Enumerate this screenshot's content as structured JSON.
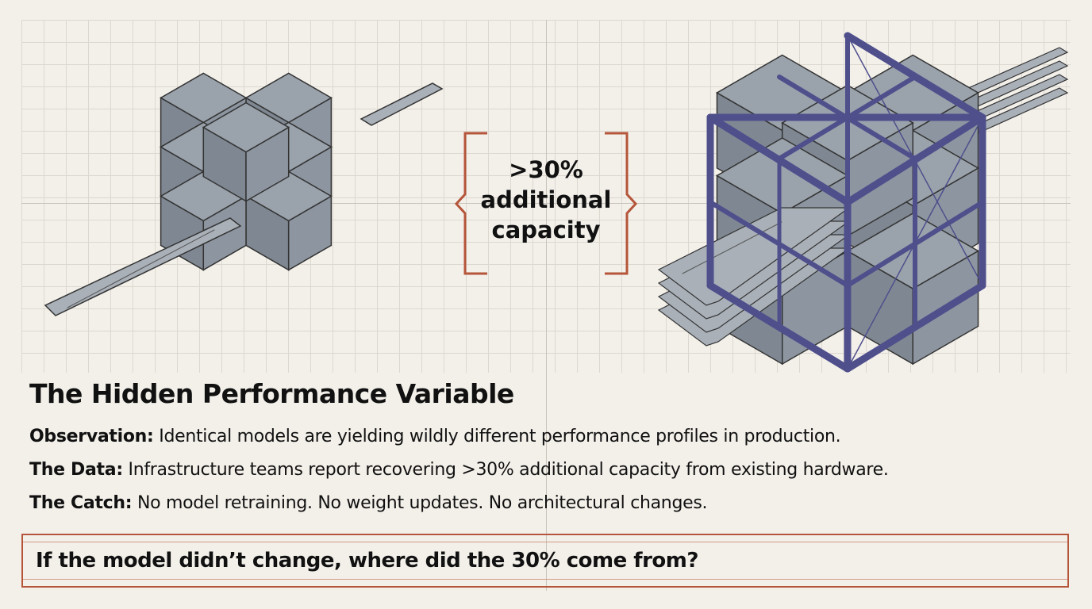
{
  "callout": {
    "line1": ">30%",
    "line2": "additional",
    "line3": "capacity"
  },
  "title": "The Hidden Performance Variable",
  "points": [
    {
      "label": "Observation:",
      "text": "Identical models are yielding wildly different performance profiles in production."
    },
    {
      "label": "The Data:",
      "text": "Infrastructure teams report recovering >30% additional capacity from existing hardware."
    },
    {
      "label": "The Catch:",
      "text": "No model retraining. No weight updates. No architectural changes."
    }
  ],
  "question": "If the model didn’t change, where did the 30% come from?",
  "colors": {
    "accent": "#b5563a",
    "frame": "#4f4f8c",
    "block": "#9aa2ab",
    "background": "#f3f0ea"
  },
  "illustrations": [
    "loose-block-cluster",
    "framed-block-structure"
  ]
}
